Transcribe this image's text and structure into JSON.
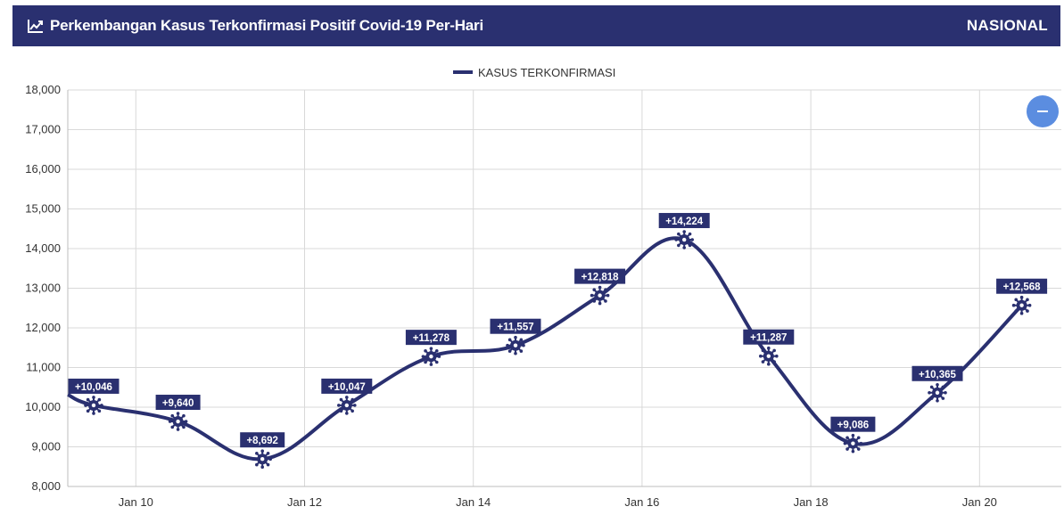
{
  "header": {
    "title": "Perkembangan Kasus Terkonfirmasi Positif Covid-19 Per-Hari",
    "scope": "NASIONAL",
    "icon": "line-chart-icon"
  },
  "zoom_button": {
    "icon": "minus-icon"
  },
  "colors": {
    "header_bg": "#2a3070",
    "line": "#2a3070",
    "label_bg": "#2a3070",
    "zoom_button": "#5b8de0",
    "grid": "#d9d9d9"
  },
  "chart_data": {
    "type": "line",
    "title": "",
    "xlabel": "",
    "ylabel": "",
    "legend": {
      "position": "top-center"
    },
    "grid": true,
    "ylim": [
      8000,
      18000
    ],
    "yticks": [
      "8,000",
      "9,000",
      "10,000",
      "11,000",
      "12,000",
      "13,000",
      "14,000",
      "15,000",
      "16,000",
      "17,000",
      "18,000"
    ],
    "xticks": [
      "Jan 10",
      "Jan 12",
      "Jan 14",
      "Jan 16",
      "Jan 18",
      "Jan 20"
    ],
    "x": [
      "2021-01-09",
      "2021-01-10",
      "2021-01-11",
      "2021-01-12",
      "2021-01-13",
      "2021-01-14",
      "2021-01-15",
      "2021-01-16",
      "2021-01-17",
      "2021-01-18",
      "2021-01-19",
      "2021-01-20"
    ],
    "series": [
      {
        "name": "KASUS TERKONFIRMASI",
        "values": [
          10046,
          9640,
          8692,
          10047,
          11278,
          11557,
          12818,
          14224,
          11287,
          9086,
          10365,
          12568
        ],
        "labels": [
          "+10,046",
          "+9,640",
          "+8,692",
          "+10,047",
          "+11,278",
          "+11,557",
          "+12,818",
          "+14,224",
          "+11,287",
          "+9,086",
          "+10,365",
          "+12,568"
        ]
      }
    ]
  }
}
